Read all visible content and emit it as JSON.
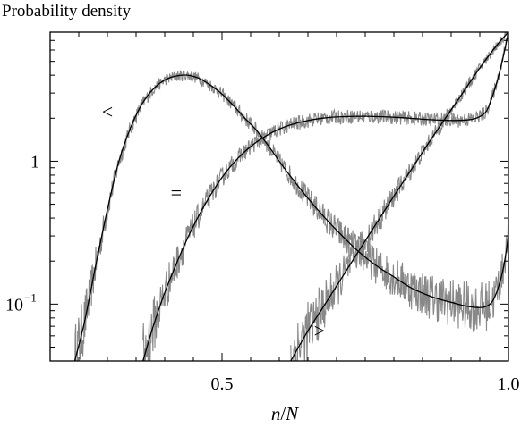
{
  "chart_data": {
    "type": "line",
    "ylabel": "Probability density",
    "xlabel_italic_n": "n",
    "xlabel_sep": "/",
    "xlabel_italic_N": "N",
    "xlim": [
      0.2,
      1.0
    ],
    "ylim": [
      0.04,
      8.0
    ],
    "yscale": "log",
    "x_ticks": [
      {
        "value": 0.5,
        "label": "0.5"
      },
      {
        "value": 1.0,
        "label": "1.0"
      }
    ],
    "y_ticks": [
      {
        "value": 1,
        "label": "1"
      },
      {
        "value": 0.1,
        "label_base": "10",
        "label_exp": "−1"
      }
    ],
    "grid": false,
    "series": [
      {
        "name": "<",
        "color": "#000000",
        "noise_color": "#888888",
        "x": [
          0.243,
          0.26,
          0.28,
          0.3,
          0.32,
          0.34,
          0.36,
          0.38,
          0.4,
          0.42,
          0.44,
          0.46,
          0.48,
          0.5,
          0.52,
          0.54,
          0.56,
          0.58,
          0.6,
          0.62,
          0.65,
          0.68,
          0.71,
          0.74,
          0.77,
          0.8,
          0.83,
          0.86,
          0.88,
          0.9,
          0.92,
          0.94,
          0.96,
          0.975,
          0.99,
          1.0
        ],
        "values": [
          0.04,
          0.075,
          0.19,
          0.46,
          1.0,
          1.7,
          2.5,
          3.2,
          3.7,
          3.95,
          4.0,
          3.8,
          3.4,
          2.95,
          2.45,
          2.0,
          1.65,
          1.3,
          1.0,
          0.78,
          0.55,
          0.4,
          0.3,
          0.23,
          0.185,
          0.155,
          0.13,
          0.115,
          0.108,
          0.103,
          0.098,
          0.095,
          0.096,
          0.11,
          0.17,
          0.3
        ]
      },
      {
        "name": "=",
        "color": "#000000",
        "noise_color": "#888888",
        "x": [
          0.362,
          0.38,
          0.4,
          0.42,
          0.44,
          0.46,
          0.48,
          0.5,
          0.52,
          0.54,
          0.56,
          0.58,
          0.6,
          0.62,
          0.64,
          0.66,
          0.68,
          0.7,
          0.73,
          0.76,
          0.79,
          0.82,
          0.85,
          0.88,
          0.91,
          0.94,
          0.96,
          0.97,
          0.98,
          0.99,
          1.0
        ],
        "values": [
          0.04,
          0.07,
          0.12,
          0.19,
          0.29,
          0.42,
          0.58,
          0.77,
          0.97,
          1.17,
          1.36,
          1.53,
          1.68,
          1.8,
          1.89,
          1.96,
          2.01,
          2.04,
          2.06,
          2.06,
          2.04,
          2.01,
          1.97,
          1.94,
          1.93,
          1.98,
          2.2,
          2.7,
          3.6,
          5.2,
          8.0
        ]
      },
      {
        "name": ">",
        "color": "#000000",
        "noise_color": "#888888",
        "x": [
          0.62,
          0.65,
          0.68,
          0.71,
          0.74,
          0.77,
          0.8,
          0.83,
          0.86,
          0.89,
          0.92,
          0.95,
          0.98,
          1.0
        ],
        "values": [
          0.04,
          0.065,
          0.1,
          0.155,
          0.24,
          0.37,
          0.57,
          0.87,
          1.33,
          2.0,
          3.0,
          4.5,
          6.5,
          8.0
        ]
      }
    ],
    "annotations": [
      {
        "text": "<",
        "x": 0.3,
        "y": 2.2
      },
      {
        "text": "=",
        "x": 0.42,
        "y": 0.6
      },
      {
        "text": ">",
        "x": 0.67,
        "y": 0.065
      }
    ]
  }
}
